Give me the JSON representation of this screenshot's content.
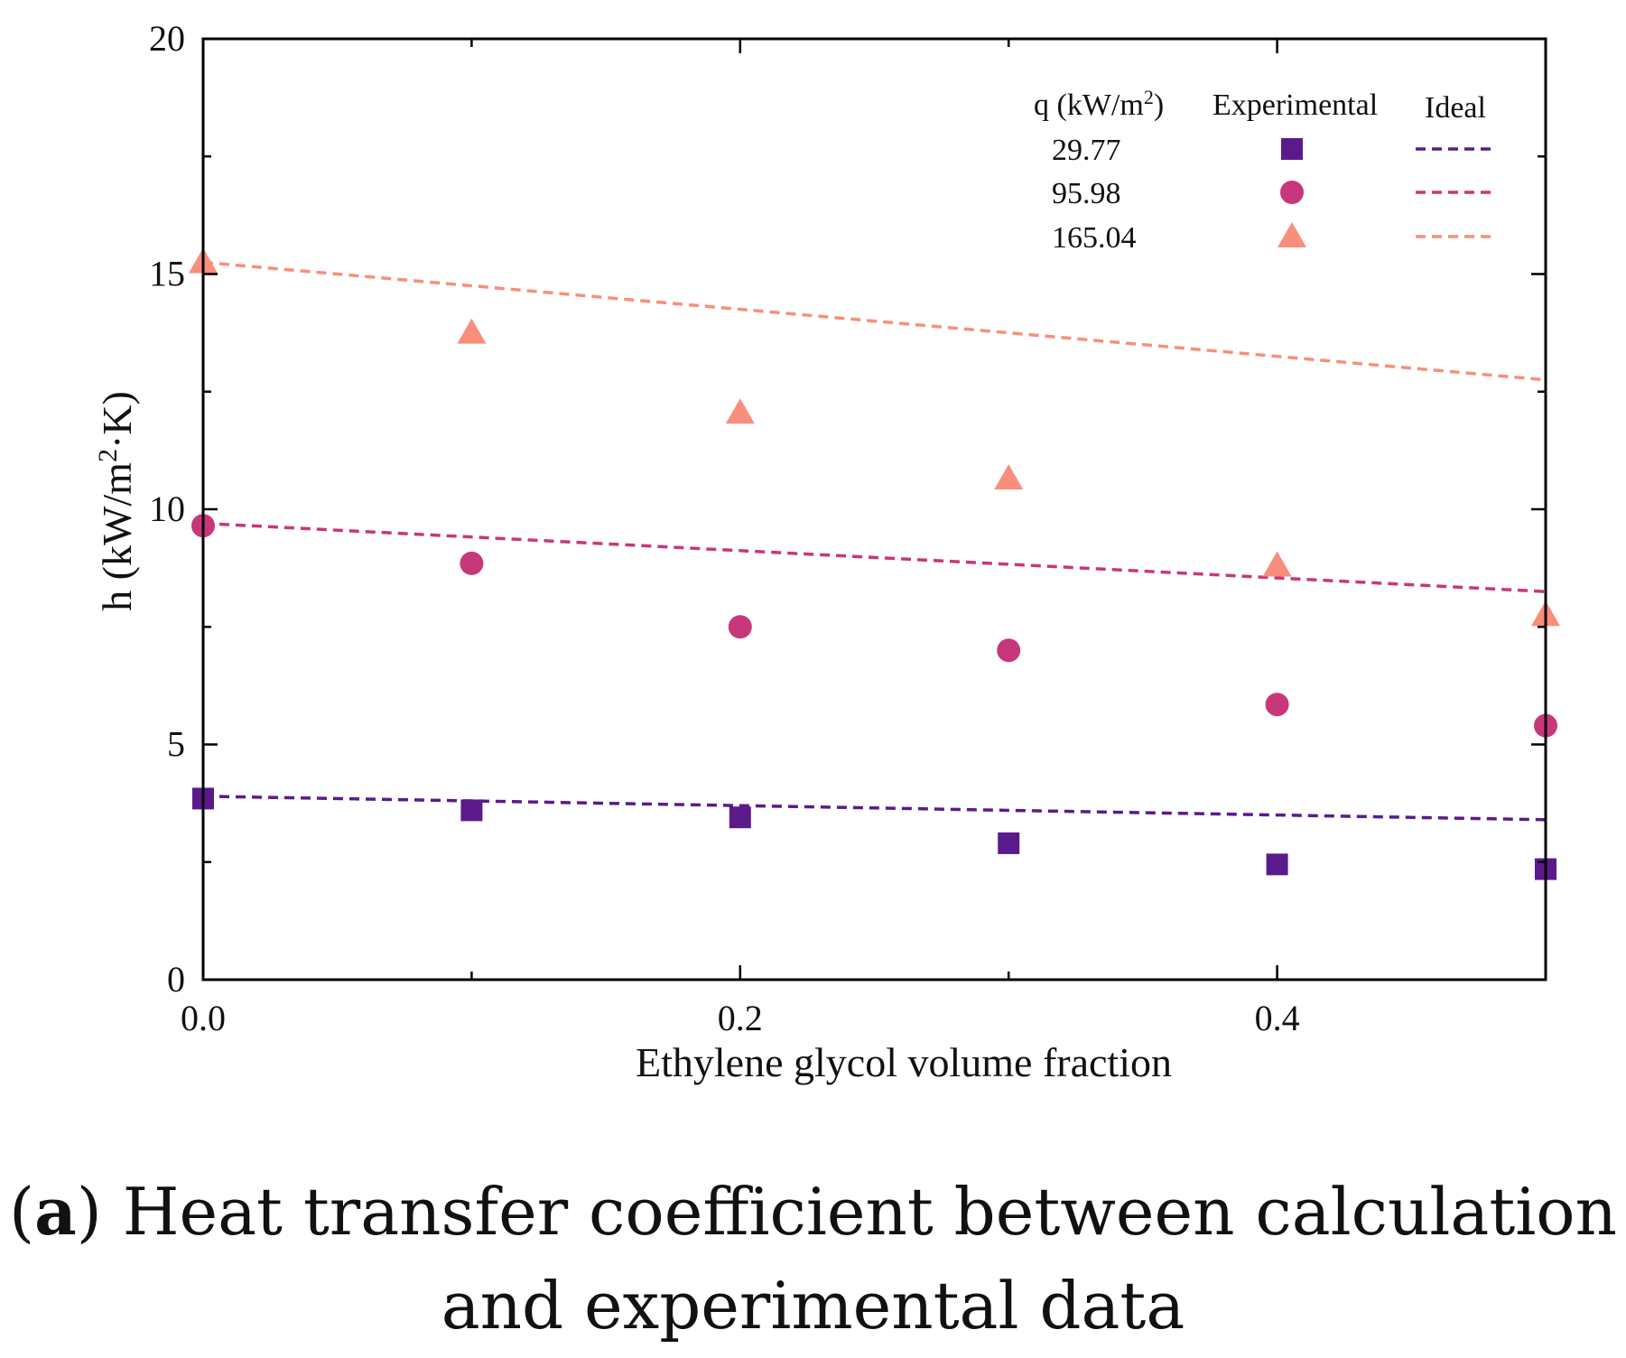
{
  "chart_data": {
    "type": "scatter",
    "xlabel": "Ethylene glycol volume fraction",
    "ylabel": "h (kW/m²·K)",
    "xlim": [
      0.0,
      0.5
    ],
    "ylim": [
      0,
      20
    ],
    "x_ticks": [
      0.0,
      0.2,
      0.4
    ],
    "x_tick_labels": [
      "0.0",
      "0.2",
      "0.4"
    ],
    "x_minor_ticks": [
      0.1,
      0.3
    ],
    "y_ticks": [
      0,
      5,
      10,
      15,
      20
    ],
    "y_tick_labels": [
      "0",
      "5",
      "10",
      "15",
      "20"
    ],
    "y_minor_ticks": [
      2.5,
      7.5,
      12.5,
      17.5
    ],
    "x": [
      0.0,
      0.1,
      0.2,
      0.3,
      0.4,
      0.5
    ],
    "series": [
      {
        "name": "29.77",
        "marker": "square",
        "color": "#5B1A8C",
        "experimental": [
          3.85,
          3.6,
          3.45,
          2.9,
          2.45,
          2.35
        ],
        "ideal": {
          "x": [
            0.0,
            0.5
          ],
          "y": [
            3.9,
            3.4
          ]
        }
      },
      {
        "name": "95.98",
        "marker": "circle",
        "color": "#C8377A",
        "experimental": [
          9.65,
          8.85,
          7.5,
          7.0,
          5.85,
          5.4
        ],
        "ideal": {
          "x": [
            0.0,
            0.5
          ],
          "y": [
            9.7,
            8.25
          ]
        }
      },
      {
        "name": "165.04",
        "marker": "triangle",
        "color": "#F98E7C",
        "experimental": [
          15.25,
          13.75,
          12.05,
          10.65,
          8.8,
          7.75
        ],
        "ideal": {
          "x": [
            0.0,
            0.5
          ],
          "y": [
            15.25,
            12.75
          ]
        }
      }
    ],
    "legend": {
      "position": "top-right",
      "col_q": "q (kW/m",
      "col_q_sup": "2",
      "col_q_end": ")",
      "col_experimental": "Experimental",
      "col_ideal": "Ideal"
    }
  },
  "caption": {
    "label": "a",
    "text": " Heat transfer coefficient between calculation",
    "line2": "and experimental data"
  }
}
